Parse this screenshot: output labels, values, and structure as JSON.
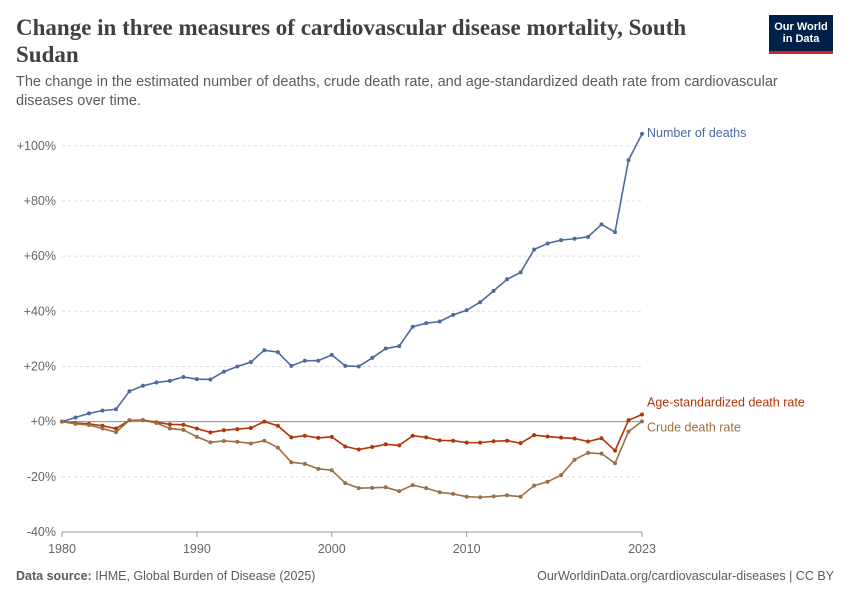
{
  "header": {
    "title": "Change in three measures of cardiovascular disease mortality, South Sudan",
    "subtitle": "The change in the estimated number of deaths, crude death rate, and age-standardized death rate from cardiovascular diseases over time."
  },
  "logo": {
    "line1": "Our World",
    "line2": "in Data",
    "bg_color": "#002147",
    "accent_color": "#ce261e"
  },
  "footer": {
    "source_label": "Data source:",
    "source_text": "IHME, Global Burden of Disease (2025)",
    "url": "OurWorldinData.org/cardiovascular-diseases | CC BY"
  },
  "chart_data": {
    "type": "line",
    "x": [
      1980,
      1981,
      1982,
      1983,
      1984,
      1985,
      1986,
      1987,
      1988,
      1989,
      1990,
      1991,
      1992,
      1993,
      1994,
      1995,
      1996,
      1997,
      1998,
      1999,
      2000,
      2001,
      2002,
      2003,
      2004,
      2005,
      2006,
      2007,
      2008,
      2009,
      2010,
      2011,
      2012,
      2013,
      2014,
      2015,
      2016,
      2017,
      2018,
      2019,
      2020,
      2021,
      2022,
      2023
    ],
    "xlim": [
      1980,
      2023
    ],
    "ylim": [
      -40,
      105
    ],
    "y_ticks": [
      100,
      80,
      60,
      40,
      20,
      0,
      -20,
      -40
    ],
    "y_tick_labels": [
      "+100%",
      "+80%",
      "+60%",
      "+40%",
      "+20%",
      "+0%",
      "-20%",
      "-40%"
    ],
    "x_ticks": [
      1980,
      1990,
      2000,
      2010,
      2023
    ],
    "x_tick_labels": [
      "1980",
      "1990",
      "2000",
      "2010",
      "2023"
    ],
    "grid": "horizontal dashed",
    "series": [
      {
        "name": "Number of deaths",
        "color": "#4c6a9c",
        "values": [
          0,
          1.5,
          3,
          4,
          4.5,
          11,
          13,
          14.2,
          14.8,
          16.2,
          15.4,
          15.3,
          18.1,
          20,
          21.6,
          25.9,
          25.2,
          20.2,
          22.1,
          22.1,
          24.2,
          20.2,
          20,
          23.1,
          26.5,
          27.4,
          34.4,
          35.7,
          36.3,
          38.7,
          40.4,
          43.3,
          47.4,
          51.6,
          54.1,
          62.4,
          64.6,
          65.8,
          66.3,
          67,
          71.5,
          68.7,
          94.8,
          104.3
        ]
      },
      {
        "name": "Age-standardized death rate",
        "color": "#b13507",
        "values": [
          0,
          -0.5,
          -0.8,
          -1.5,
          -2.5,
          0.5,
          0.6,
          -0.2,
          -1,
          -1.1,
          -2.5,
          -3.9,
          -3.1,
          -2.7,
          -2.3,
          0,
          -1.5,
          -5.7,
          -5.1,
          -5.9,
          -5.5,
          -9,
          -10.1,
          -9.2,
          -8.2,
          -8.6,
          -5.1,
          -5.7,
          -6.8,
          -6.9,
          -7.6,
          -7.6,
          -7.1,
          -6.9,
          -7.8,
          -4.9,
          -5.4,
          -5.8,
          -6.1,
          -7.2,
          -6,
          -10.5,
          0.5,
          2.6
        ]
      },
      {
        "name": "Crude death rate",
        "color": "#9a7044",
        "values": [
          0,
          -0.8,
          -1.2,
          -2.5,
          -3.8,
          0.5,
          0.5,
          -0.5,
          -2.5,
          -3,
          -5.5,
          -7.5,
          -7,
          -7.3,
          -7.9,
          -6.9,
          -9.4,
          -14.7,
          -15.3,
          -17.1,
          -17.6,
          -22.3,
          -24.1,
          -24,
          -23.8,
          -25.2,
          -23,
          -24.1,
          -25.6,
          -26.2,
          -27.2,
          -27.4,
          -27.1,
          -26.7,
          -27.2,
          -23.2,
          -21.8,
          -19.4,
          -13.8,
          -11.3,
          -11.6,
          -15.1,
          -3.6,
          0.1
        ]
      }
    ]
  }
}
